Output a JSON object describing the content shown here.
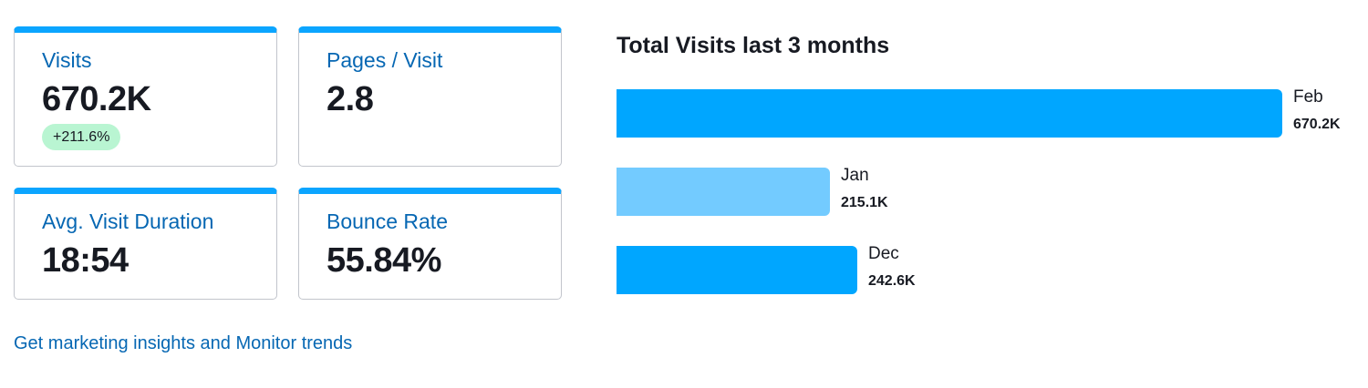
{
  "metrics": {
    "visits": {
      "label": "Visits",
      "value": "670.2K",
      "change": "+211.6%"
    },
    "pages_per_visit": {
      "label": "Pages / Visit",
      "value": "2.8"
    },
    "avg_duration": {
      "label": "Avg. Visit Duration",
      "value": "18:54"
    },
    "bounce_rate": {
      "label": "Bounce Rate",
      "value": "55.84%"
    }
  },
  "link": {
    "text": "Get marketing insights and Monitor trends"
  },
  "colors": {
    "accent": "#0ba5ff",
    "link": "#0667b3",
    "badge_bg": "#b9f5d2",
    "bar_primary": "#00a6ff",
    "bar_light": "#73cbff"
  },
  "chart_data": {
    "type": "bar",
    "orientation": "horizontal",
    "title": "Total Visits last 3 months",
    "categories": [
      "Feb",
      "Jan",
      "Dec"
    ],
    "values": [
      670200,
      215100,
      242600
    ],
    "value_labels": [
      "670.2K",
      "215.1K",
      "242.6K"
    ],
    "bar_colors": [
      "#00a6ff",
      "#73cbff",
      "#00a6ff"
    ],
    "xlim": [
      0,
      670200
    ],
    "grid": false
  }
}
